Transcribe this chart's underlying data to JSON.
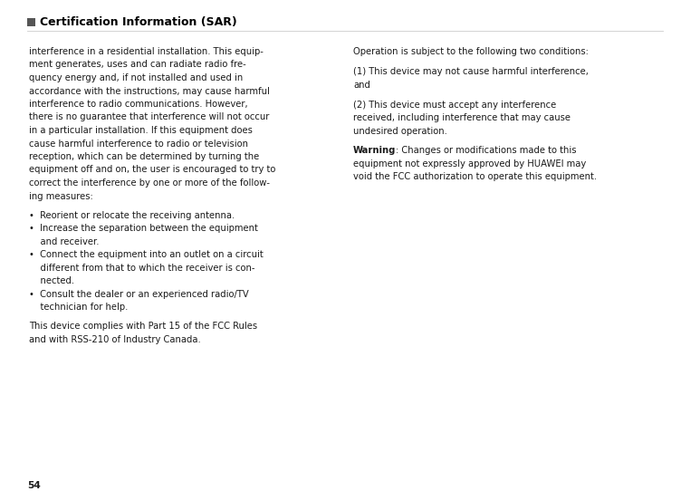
{
  "title": "Certification Information (SAR)",
  "title_fontsize": 9.0,
  "body_fontsize": 7.2,
  "bg_color": "#ffffff",
  "text_color": "#1a1a1a",
  "title_color": "#000000",
  "page_number": "54",
  "left_col_lines": [
    "interference in a residential installation. This equip-",
    "ment generates, uses and can radiate radio fre-",
    "quency energy and, if not installed and used in",
    "accordance with the instructions, may cause harmful",
    "interference to radio communications. However,",
    "there is no guarantee that interference will not occur",
    "in a particular installation. If this equipment does",
    "cause harmful interference to radio or television",
    "reception, which can be determined by turning the",
    "equipment off and on, the user is encouraged to try to",
    "correct the interference by one or more of the follow-",
    "ing measures:",
    "",
    "•  Reorient or relocate the receiving antenna.",
    "•  Increase the separation between the equipment",
    "    and receiver.",
    "•  Connect the equipment into an outlet on a circuit",
    "    different from that to which the receiver is con-",
    "    nected.",
    "•  Consult the dealer or an experienced radio/TV",
    "    technician for help.",
    "",
    "This device complies with Part 15 of the FCC Rules",
    "and with RSS-210 of Industry Canada."
  ],
  "right_col_para1": "Operation is subject to the following two conditions:",
  "right_col_para2_lines": [
    "(1) This device may not cause harmful interference,",
    "and"
  ],
  "right_col_para3_lines": [
    "(2) This device must accept any interference",
    "received, including interference that may cause",
    "undesired operation."
  ],
  "right_col_warning_bold": "Warning",
  "right_col_warning_rest_lines": [
    ": Changes or modifications made to this",
    "equipment not expressly approved by HUAWEI may",
    "void the FCC authorization to operate this equipment."
  ],
  "rect_color": "#555555",
  "divider_color": "#cccccc"
}
